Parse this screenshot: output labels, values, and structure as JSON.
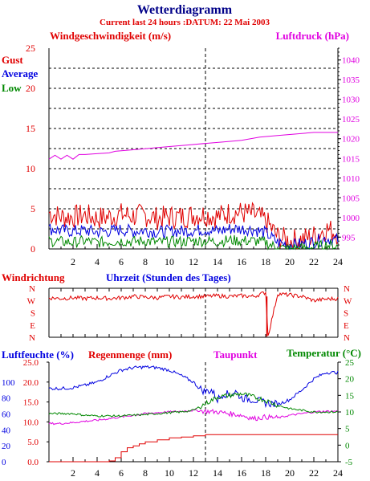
{
  "title": "Wetterdiagramm",
  "subtitle": "Current last 24 hours :DATUM: 22 Mai 2003",
  "colors": {
    "red": "#e00000",
    "blue": "#0000e0",
    "green": "#008800",
    "magenta": "#e000e0",
    "darkblue": "#000088",
    "axis": "#000000",
    "grid": "#000000"
  },
  "chart_data": [
    {
      "type": "line",
      "panel": "wind",
      "left_label": "Windgeschwindigkeit (m/s)",
      "right_label": "Luftdruck (hPa)",
      "legend": [
        "Gust",
        "Average",
        "Low"
      ],
      "x": {
        "label": "Uhrzeit (Stunden des Tages)",
        "range": [
          0,
          24
        ],
        "ticks": [
          2,
          4,
          6,
          8,
          10,
          12,
          14,
          16,
          18,
          20,
          22,
          24
        ]
      },
      "y_left": {
        "range": [
          0,
          25
        ],
        "ticks": [
          0,
          5,
          10,
          15,
          20,
          25
        ]
      },
      "y_right": {
        "range": [
          992,
          1043
        ],
        "ticks": [
          995,
          1000,
          1005,
          1010,
          1015,
          1020,
          1025,
          1030,
          1035,
          1040
        ]
      },
      "grid": "dotted horizontal",
      "marker_hour": 13,
      "series": [
        {
          "name": "Gust",
          "color": "#e00000",
          "axis": "left",
          "x": [
            0,
            1,
            2,
            3,
            4,
            5,
            6,
            7,
            8,
            9,
            10,
            11,
            12,
            13,
            14,
            15,
            16,
            17,
            18,
            19,
            20,
            21,
            22,
            23,
            24
          ],
          "y": [
            4.5,
            4.0,
            4.0,
            4.2,
            3.8,
            4.0,
            4.3,
            4.1,
            4.2,
            3.8,
            4.0,
            4.0,
            4.2,
            4.3,
            4.0,
            4.5,
            4.5,
            4.3,
            3.5,
            1.5,
            1.0,
            1.2,
            1.6,
            2.5,
            2.0
          ]
        },
        {
          "name": "Average",
          "color": "#0000e0",
          "axis": "left",
          "x": [
            0,
            1,
            2,
            3,
            4,
            5,
            6,
            7,
            8,
            9,
            10,
            11,
            12,
            13,
            14,
            15,
            16,
            17,
            18,
            19,
            20,
            21,
            22,
            23,
            24
          ],
          "y": [
            2.5,
            2.3,
            2.2,
            2.3,
            2.1,
            2.2,
            2.4,
            2.2,
            2.3,
            2.1,
            2.2,
            2.2,
            2.3,
            2.4,
            2.2,
            2.5,
            2.5,
            2.4,
            2.0,
            0.8,
            0.5,
            0.6,
            0.9,
            1.3,
            1.1
          ]
        },
        {
          "name": "Low",
          "color": "#008800",
          "axis": "left",
          "x": [
            0,
            1,
            2,
            3,
            4,
            5,
            6,
            7,
            8,
            9,
            10,
            11,
            12,
            13,
            14,
            15,
            16,
            17,
            18,
            19,
            20,
            21,
            22,
            23,
            24
          ],
          "y": [
            1.0,
            0.9,
            0.8,
            1.0,
            0.8,
            0.9,
            1.0,
            0.9,
            1.0,
            0.8,
            0.9,
            0.9,
            1.0,
            1.0,
            0.9,
            1.1,
            1.0,
            1.0,
            0.8,
            0.1,
            0.0,
            0.1,
            0.2,
            0.5,
            0.3
          ]
        },
        {
          "name": "Luftdruck",
          "color": "#e000e0",
          "axis": "right",
          "x": [
            0,
            0.5,
            1,
            1.5,
            2,
            2.5,
            3,
            5,
            5.5,
            7,
            8.5,
            10,
            11.5,
            13,
            14.5,
            16,
            17.5,
            19,
            20.5,
            22,
            24
          ],
          "y": [
            1014.8,
            1015.8,
            1014.8,
            1015.8,
            1014.8,
            1016.0,
            1016.0,
            1016.4,
            1016.8,
            1017.2,
            1017.6,
            1018.0,
            1018.4,
            1018.8,
            1019.2,
            1019.6,
            1020.4,
            1020.8,
            1021.2,
            1021.6,
            1021.6
          ]
        }
      ]
    },
    {
      "type": "line",
      "panel": "direction",
      "label": "Windrichtung",
      "y_ticks": [
        "N",
        "W",
        "S",
        "E",
        "N"
      ],
      "marker_hour": 13,
      "series": [
        {
          "name": "Windrichtung",
          "color": "#e00000",
          "x": [
            0,
            1,
            2,
            3,
            4,
            5,
            6,
            7,
            8,
            9,
            10,
            11,
            12,
            13,
            14,
            15,
            16,
            17,
            18,
            18.2,
            19,
            20,
            21,
            22,
            23,
            24
          ],
          "y": [
            290,
            285,
            290,
            285,
            290,
            285,
            290,
            300,
            295,
            290,
            300,
            295,
            300,
            300,
            305,
            300,
            305,
            300,
            330,
            10,
            320,
            310,
            300,
            270,
            280,
            285
          ]
        }
      ]
    },
    {
      "type": "line",
      "panel": "humidity",
      "labels": [
        "Luftfeuchte (%)",
        "Regenmenge (mm)",
        "Taupunkt",
        "Temperatur (°C)"
      ],
      "x": {
        "range": [
          0,
          24
        ],
        "ticks": [
          2,
          4,
          6,
          8,
          10,
          12,
          14,
          16,
          18,
          20,
          22,
          24
        ]
      },
      "y_left_humidity": {
        "range": [
          0,
          125
        ],
        "ticks": [
          0,
          20,
          40,
          60,
          80,
          100
        ]
      },
      "y_left_rain": {
        "range": [
          0,
          25
        ],
        "ticks": [
          "0.0",
          "5.0",
          "10.0",
          "15.0",
          "20.0",
          "25.0"
        ]
      },
      "y_right": {
        "range": [
          -5,
          25
        ],
        "ticks": [
          -5,
          0,
          5,
          10,
          15,
          20,
          25
        ]
      },
      "marker_hour": 13,
      "series": [
        {
          "name": "Luftfeuchte",
          "color": "#0000e0",
          "axis": "humidity",
          "x": [
            0,
            1,
            2,
            3,
            4,
            5,
            6,
            7,
            8,
            9,
            10,
            11,
            12,
            12.5,
            13,
            13.5,
            14,
            14.5,
            15,
            15.5,
            16,
            17,
            18,
            19,
            20,
            21,
            22,
            23,
            24
          ],
          "y": [
            92,
            92,
            93,
            96,
            100,
            108,
            115,
            118,
            119,
            118,
            115,
            108,
            100,
            92,
            88,
            90,
            78,
            86,
            84,
            88,
            80,
            78,
            74,
            72,
            78,
            90,
            104,
            112,
            112
          ]
        },
        {
          "name": "Regenmenge",
          "color": "#e00000",
          "axis": "rain",
          "x": [
            0,
            4,
            5,
            5.5,
            6,
            6.5,
            7,
            7.5,
            8,
            9,
            10,
            11,
            12,
            13,
            24
          ],
          "y": [
            0,
            0,
            0.2,
            1.0,
            2.5,
            3.5,
            4.0,
            4.5,
            5.0,
            5.5,
            6.0,
            6.2,
            6.5,
            6.8,
            6.8
          ]
        },
        {
          "name": "Taupunkt",
          "color": "#e000e0",
          "axis": "temp",
          "x": [
            0,
            1,
            2,
            3,
            4,
            5,
            6,
            7,
            8,
            9,
            10,
            11,
            12,
            13,
            14,
            15,
            16,
            17,
            18,
            19,
            20,
            21,
            22,
            23,
            24
          ],
          "y": [
            6.5,
            6.5,
            6.8,
            7.2,
            7.5,
            8.0,
            8.5,
            9.0,
            9.5,
            9.8,
            10.0,
            10.2,
            10.5,
            10.2,
            10.0,
            9.5,
            9.0,
            8.0,
            8.5,
            8.2,
            9.0,
            9.5,
            10.0,
            10.2,
            10.2
          ]
        },
        {
          "name": "Temperatur",
          "color": "#008800",
          "axis": "temp",
          "x": [
            0,
            1,
            2,
            3,
            4,
            5,
            6,
            7,
            8,
            9,
            10,
            11,
            12,
            13,
            14,
            15,
            16,
            17,
            18,
            19,
            20,
            21,
            22,
            23,
            24
          ],
          "y": [
            9.5,
            9.5,
            9.5,
            9.0,
            8.8,
            8.8,
            8.8,
            9.0,
            9.2,
            9.5,
            9.8,
            10.0,
            10.5,
            12.5,
            14.5,
            15.0,
            15.5,
            14.5,
            13.5,
            12.0,
            11.0,
            10.5,
            10.0,
            10.0,
            10.0
          ]
        }
      ]
    }
  ]
}
